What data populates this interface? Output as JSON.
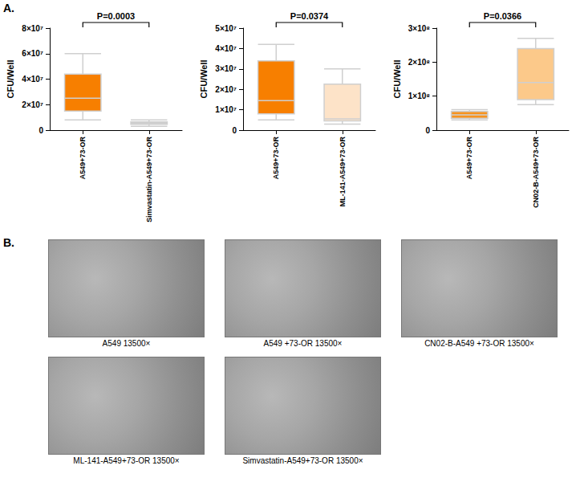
{
  "panel_labels": [
    "A.",
    "B."
  ],
  "chart_data": [
    {
      "type": "boxplot",
      "y_label": "CFU/Well",
      "annotation": "P=0.0003",
      "categories": [
        "A549+73-OR",
        "Simvastatin-A549+73-OR"
      ],
      "values": [
        [
          8000000,
          15000000,
          25000000,
          44000000,
          60000000
        ],
        [
          3000000,
          4500000,
          5500000,
          6500000,
          8000000
        ]
      ],
      "colors": [
        "#f77f00",
        "#fcd3ad"
      ],
      "ylim": [
        0,
        80000000
      ],
      "yticks": [
        0,
        {
          "value": 20000000,
          "label": "2×10⁷"
        },
        {
          "value": 40000000,
          "label": "4×10⁷"
        },
        {
          "value": 60000000,
          "label": "6×10⁷"
        },
        {
          "value": 80000000,
          "label": "8×10⁷"
        }
      ]
    },
    {
      "type": "boxplot",
      "y_label": "CFU/Well",
      "annotation": "P=0.0374",
      "categories": [
        "A549+73-OR",
        "ML-141-A549+73-OR"
      ],
      "values": [
        [
          5000000,
          8000000,
          14500000,
          34000000,
          42000000
        ],
        [
          3000000,
          4500000,
          5500000,
          22500000,
          30000000
        ]
      ],
      "colors": [
        "#f77f00",
        "#fde3c8"
      ],
      "ylim": [
        0,
        50000000
      ],
      "yticks": [
        0,
        {
          "value": 10000000,
          "label": "1×10⁷"
        },
        {
          "value": 20000000,
          "label": "2×10⁷"
        },
        {
          "value": 30000000,
          "label": "3×10⁷"
        },
        {
          "value": 40000000,
          "label": "4×10⁷"
        },
        {
          "value": 50000000,
          "label": "5×10⁷"
        }
      ]
    },
    {
      "type": "boxplot",
      "y_label": "CFU/Well",
      "annotation": "P=0.0366",
      "categories": [
        "A549+73-OR",
        "CN02-B-A549+73-OR"
      ],
      "values": [
        [
          30000000,
          35000000,
          45000000,
          55000000,
          60000000
        ],
        [
          75000000,
          90000000,
          140000000,
          240000000,
          270000000
        ]
      ],
      "colors": [
        "#f7931e",
        "#fcc98a"
      ],
      "ylim": [
        0,
        300000000
      ],
      "yticks": [
        0,
        {
          "value": 100000000,
          "label": "1×10⁸"
        },
        {
          "value": 200000000,
          "label": "2×10⁸"
        },
        {
          "value": 300000000,
          "label": "3×10⁸"
        }
      ]
    }
  ],
  "images": [
    {
      "caption": "A549 13500×"
    },
    {
      "caption": "A549 +73-OR 13500×"
    },
    {
      "caption": "CN02-B-A549 +73-OR 13500×"
    },
    {
      "caption": "ML-141-A549+73-OR 13500×"
    },
    {
      "caption": "Simvastatin-A549+73-OR 13500×"
    }
  ]
}
